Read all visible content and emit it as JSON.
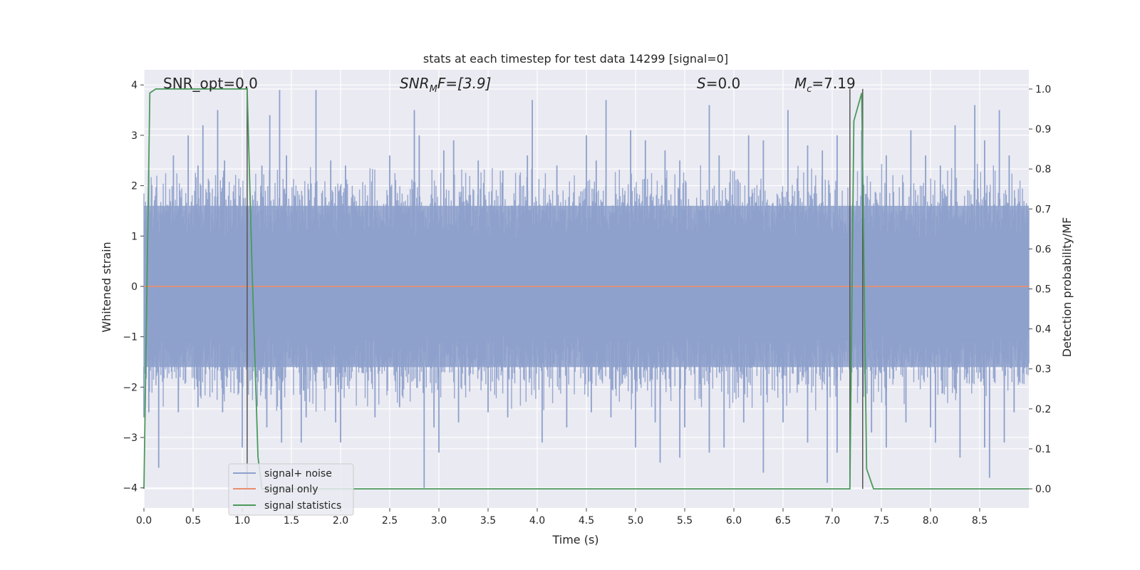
{
  "chart_data": {
    "type": "line",
    "title": "stats at each timestep for test data 14299 [signal=0]",
    "xlabel": "Time (s)",
    "ylabel": "Whitened strain",
    "y2label": "Detection probability/MF",
    "xlim": [
      0.0,
      9.0
    ],
    "ylim": [
      -4.4,
      4.3
    ],
    "y2lim": [
      -0.048,
      1.048
    ],
    "xticks": [
      0.0,
      0.5,
      1.0,
      1.5,
      2.0,
      2.5,
      3.0,
      3.5,
      4.0,
      4.5,
      5.0,
      5.5,
      6.0,
      6.5,
      7.0,
      7.5,
      8.0,
      8.5
    ],
    "xtick_labels": [
      "0.0",
      "0.5",
      "1.0",
      "1.5",
      "2.0",
      "2.5",
      "3.0",
      "3.5",
      "4.0",
      "4.5",
      "5.0",
      "5.5",
      "6.0",
      "6.5",
      "7.0",
      "7.5",
      "8.0",
      "8.5"
    ],
    "yticks": [
      4,
      3,
      2,
      1,
      0,
      -1,
      -2,
      -3,
      -4
    ],
    "ytick_labels": [
      "4",
      "3",
      "2",
      "1",
      "0",
      "−1",
      "−2",
      "−3",
      "−4"
    ],
    "y2ticks": [
      1.0,
      0.9,
      0.8,
      0.7,
      0.6,
      0.5,
      0.4,
      0.3,
      0.2,
      0.1,
      0.0
    ],
    "y2tick_labels": [
      "1.0",
      "0.9",
      "0.8",
      "0.7",
      "0.6",
      "0.5",
      "0.4",
      "0.3",
      "0.2",
      "0.1",
      "0.0"
    ],
    "grid": true,
    "legend_position": "lower-left",
    "annotations": {
      "snr_opt": "SNR_opt=0.0",
      "snr_mf_main": "SNR",
      "snr_mf_sub": "M",
      "snr_mf_rest": "F=[3.9]",
      "s_main": "S",
      "s_rest": "=0.0",
      "mc_main": "M",
      "mc_sub": "c",
      "mc_rest": "=7.19"
    },
    "series": [
      {
        "name": "signal+ noise",
        "color": "#8da0cb",
        "axis": "left",
        "noise_band": [
          -1.6,
          1.6
        ],
        "spikes_up": [
          [
            0.05,
            2.3
          ],
          [
            0.3,
            2.6
          ],
          [
            0.45,
            3.0
          ],
          [
            0.55,
            2.4
          ],
          [
            0.6,
            3.2
          ],
          [
            0.75,
            3.5
          ],
          [
            0.82,
            2.5
          ],
          [
            1.2,
            2.4
          ],
          [
            1.28,
            3.4
          ],
          [
            1.38,
            3.9
          ],
          [
            1.45,
            2.6
          ],
          [
            1.75,
            3.9
          ],
          [
            1.9,
            2.5
          ],
          [
            2.05,
            2.4
          ],
          [
            2.5,
            2.6
          ],
          [
            2.75,
            3.5
          ],
          [
            2.8,
            3.0
          ],
          [
            3.05,
            2.7
          ],
          [
            3.15,
            2.9
          ],
          [
            3.4,
            2.5
          ],
          [
            3.65,
            2.3
          ],
          [
            3.9,
            2.6
          ],
          [
            3.95,
            3.7
          ],
          [
            4.2,
            2.4
          ],
          [
            4.5,
            3.0
          ],
          [
            4.6,
            2.5
          ],
          [
            4.7,
            3.7
          ],
          [
            4.95,
            3.1
          ],
          [
            5.1,
            2.9
          ],
          [
            5.3,
            2.7
          ],
          [
            5.45,
            2.5
          ],
          [
            5.75,
            3.6
          ],
          [
            5.85,
            2.6
          ],
          [
            6.15,
            3.0
          ],
          [
            6.3,
            2.9
          ],
          [
            6.55,
            3.5
          ],
          [
            6.75,
            2.8
          ],
          [
            6.9,
            2.7
          ],
          [
            7.05,
            3.0
          ],
          [
            7.3,
            3.1
          ],
          [
            7.55,
            2.6
          ],
          [
            7.8,
            3.1
          ],
          [
            7.95,
            2.6
          ],
          [
            8.1,
            2.4
          ],
          [
            8.25,
            3.2
          ],
          [
            8.45,
            3.6
          ],
          [
            8.55,
            2.9
          ],
          [
            8.7,
            3.5
          ],
          [
            8.8,
            2.6
          ]
        ],
        "spikes_down": [
          [
            0.0,
            -2.6
          ],
          [
            0.05,
            -2.5
          ],
          [
            0.15,
            -3.6
          ],
          [
            0.35,
            -2.5
          ],
          [
            0.55,
            -2.4
          ],
          [
            0.8,
            -2.5
          ],
          [
            1.0,
            -3.2
          ],
          [
            1.25,
            -2.8
          ],
          [
            1.4,
            -3.1
          ],
          [
            1.6,
            -3.1
          ],
          [
            1.65,
            -2.6
          ],
          [
            1.95,
            -2.7
          ],
          [
            2.0,
            -3.1
          ],
          [
            2.35,
            -2.6
          ],
          [
            2.6,
            -2.4
          ],
          [
            2.85,
            -4.0
          ],
          [
            2.95,
            -2.8
          ],
          [
            3.0,
            -3.3
          ],
          [
            3.2,
            -2.7
          ],
          [
            3.5,
            -2.5
          ],
          [
            3.7,
            -2.6
          ],
          [
            4.05,
            -3.1
          ],
          [
            4.3,
            -2.8
          ],
          [
            4.55,
            -2.5
          ],
          [
            4.75,
            -2.6
          ],
          [
            5.0,
            -3.2
          ],
          [
            5.2,
            -2.7
          ],
          [
            5.25,
            -3.5
          ],
          [
            5.45,
            -3.4
          ],
          [
            5.5,
            -2.8
          ],
          [
            5.75,
            -3.3
          ],
          [
            5.9,
            -3.2
          ],
          [
            6.1,
            -2.7
          ],
          [
            6.3,
            -3.7
          ],
          [
            6.5,
            -2.7
          ],
          [
            6.75,
            -3.1
          ],
          [
            6.95,
            -3.9
          ],
          [
            7.05,
            -3.3
          ],
          [
            7.4,
            -2.9
          ],
          [
            7.55,
            -3.2
          ],
          [
            7.75,
            -2.7
          ],
          [
            8.0,
            -2.8
          ],
          [
            8.05,
            -3.1
          ],
          [
            8.3,
            -3.4
          ],
          [
            8.55,
            -3.2
          ],
          [
            8.6,
            -3.8
          ],
          [
            8.75,
            -3.1
          ],
          [
            8.85,
            -2.5
          ]
        ]
      },
      {
        "name": "signal only",
        "color": "#e78f6e",
        "axis": "left",
        "x": [
          0.0,
          9.0
        ],
        "y": [
          0.0,
          0.0
        ]
      },
      {
        "name": "signal statistics",
        "color": "#4a9a5b",
        "axis": "right",
        "x": [
          0.0,
          0.06,
          0.12,
          0.5,
          1.0,
          1.05,
          1.1,
          1.16,
          1.2,
          7.15,
          7.18,
          7.22,
          7.3,
          7.35,
          7.42,
          8.0,
          9.0
        ],
        "y": [
          0.0,
          0.99,
          1.0,
          1.0,
          1.0,
          1.0,
          0.55,
          0.08,
          0.0,
          0.0,
          0.0,
          0.92,
          0.99,
          0.05,
          0.0,
          0.0,
          0.0
        ]
      }
    ],
    "vertical_markers": [
      1.05,
      7.18,
      7.31
    ]
  }
}
